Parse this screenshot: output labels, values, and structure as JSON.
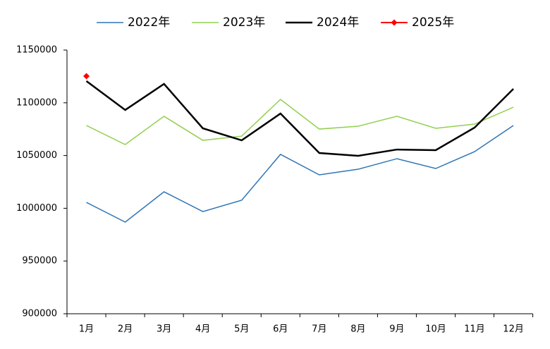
{
  "chart_data": {
    "type": "line",
    "categories": [
      "1月",
      "2月",
      "3月",
      "4月",
      "5月",
      "6月",
      "7月",
      "8月",
      "9月",
      "10月",
      "11月",
      "12月"
    ],
    "series": [
      {
        "name": "2022年",
        "color": "#2e75b6",
        "width": 1.5,
        "values": [
          1005600,
          986900,
          1015600,
          996900,
          1007600,
          1051100,
          1031700,
          1037000,
          1047000,
          1037700,
          1053700,
          1078500
        ]
      },
      {
        "name": "2023年",
        "color": "#92d050",
        "width": 1.5,
        "values": [
          1078500,
          1060400,
          1087200,
          1064400,
          1068400,
          1103200,
          1075100,
          1077800,
          1087200,
          1075800,
          1079800,
          1095800
        ]
      },
      {
        "name": "2024年",
        "color": "#000000",
        "width": 2.5,
        "values": [
          1120600,
          1093200,
          1117900,
          1075800,
          1064400,
          1089800,
          1052400,
          1049700,
          1055700,
          1055100,
          1076500,
          1113200
        ]
      },
      {
        "name": "2025年",
        "color": "#ff0000",
        "width": 2,
        "marker": "diamond",
        "values": [
          1125300,
          null,
          null,
          null,
          null,
          null,
          null,
          null,
          null,
          null,
          null,
          null
        ]
      }
    ],
    "ylim": [
      900000,
      1150000
    ],
    "yticks": [
      900000,
      950000,
      1000000,
      1050000,
      1100000,
      1150000
    ],
    "legend": "top",
    "grid": false
  }
}
